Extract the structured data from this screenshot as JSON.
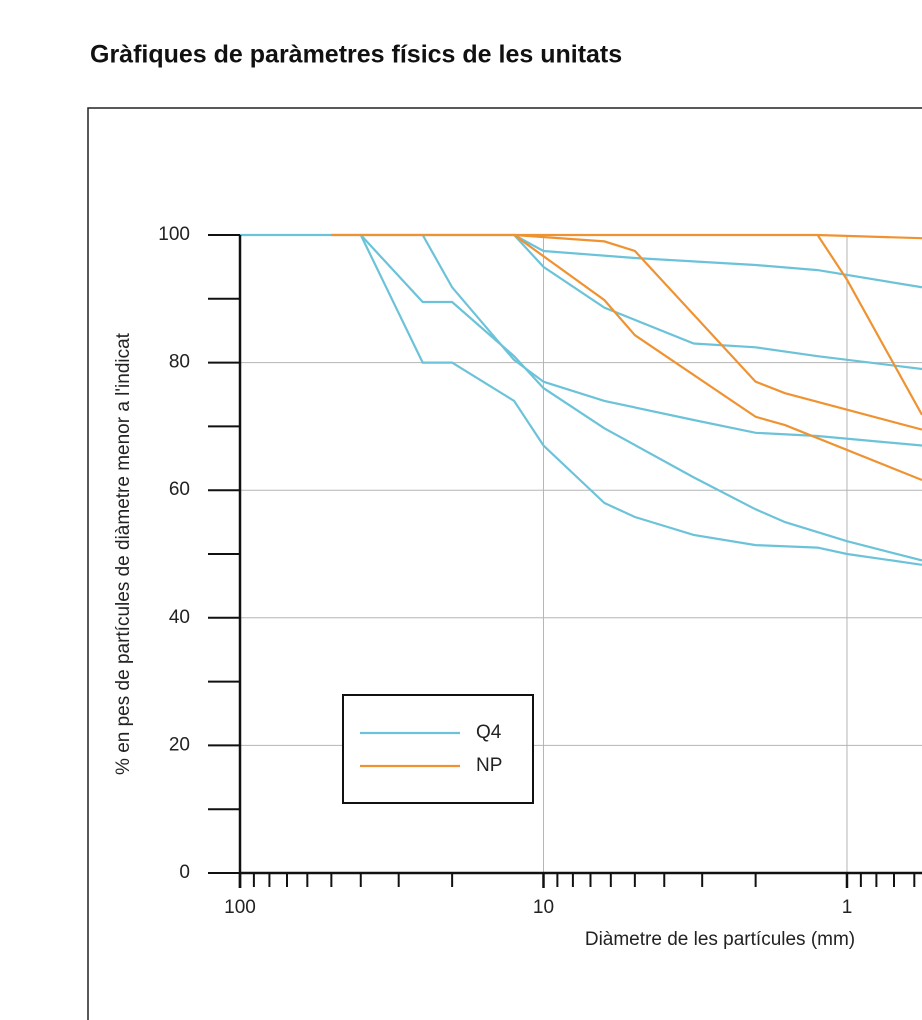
{
  "chart_data": {
    "type": "line",
    "title": "Gràfiques de paràmetres físics de les unitats",
    "x_label": "Diàmetre de les partícules (mm)",
    "y_label": "% en pes de partícules de diàmetre menor a l'indicat",
    "x_log": true,
    "x_reversed": true,
    "xlim": [
      100,
      0.566
    ],
    "ylim": [
      0,
      100
    ],
    "xticks": [
      100,
      10,
      1
    ],
    "xminor_ticks": [
      90,
      80,
      70,
      60,
      50,
      40,
      30,
      20,
      9,
      8,
      7,
      6,
      5,
      4,
      3,
      2,
      0.9,
      0.8,
      0.7,
      0.6
    ],
    "yticks": [
      0,
      20,
      40,
      60,
      80,
      100
    ],
    "yminor_ticks": [
      10,
      30,
      50,
      70,
      90
    ],
    "grid": true,
    "legend": "lower left",
    "series": [
      {
        "name": "Q4",
        "color": "#6cc3d9",
        "lines": [
          {
            "x": [
              100,
              50,
              12.5,
              10,
              5,
              2,
              1.25,
              0.566
            ],
            "values": [
              100,
              100,
              100,
              97.5,
              96.4,
              95.3,
              94.5,
              91.8
            ]
          },
          {
            "x": [
              12.5,
              10,
              6.3,
              3.2,
              2,
              1.25,
              0.566
            ],
            "values": [
              100,
              95,
              88.6,
              83,
              82.4,
              81,
              79
            ]
          },
          {
            "x": [
              25,
              20,
              12.5,
              10,
              6.3,
              3.2,
              2,
              1.25,
              0.566
            ],
            "values": [
              100,
              91.8,
              80.4,
              77,
              74,
              71,
              69,
              68.5,
              67
            ]
          },
          {
            "x": [
              40,
              25,
              20,
              12.5,
              10,
              6.3,
              3.2,
              2,
              1.6,
              1,
              0.566
            ],
            "values": [
              100,
              89.5,
              89.5,
              81,
              76,
              69.7,
              62,
              57,
              55,
              52,
              49
            ]
          },
          {
            "x": [
              40,
              25,
              20,
              12.5,
              10,
              6.3,
              5,
              3.2,
              2,
              1.25,
              1,
              0.566
            ],
            "values": [
              100,
              80,
              80,
              74,
              67,
              58,
              55.8,
              53,
              51.4,
              51,
              50,
              48.3
            ]
          }
        ]
      },
      {
        "name": "NP",
        "color": "#ef9332",
        "lines": [
          {
            "x": [
              50,
              1.25,
              0.566
            ],
            "values": [
              100,
              100,
              99.5
            ]
          },
          {
            "x": [
              12.5,
              6.3,
              5,
              2,
              1.6,
              0.566
            ],
            "values": [
              100,
              99,
              97.5,
              77,
              75.2,
              69.5
            ]
          },
          {
            "x": [
              12.5,
              6.3,
              5,
              2,
              1.6,
              0.566
            ],
            "values": [
              100,
              89.8,
              84.3,
              71.5,
              70.2,
              61.6
            ]
          },
          {
            "x": [
              1.25,
              1,
              0.566
            ],
            "values": [
              100,
              93,
              71.8
            ]
          }
        ]
      }
    ]
  }
}
